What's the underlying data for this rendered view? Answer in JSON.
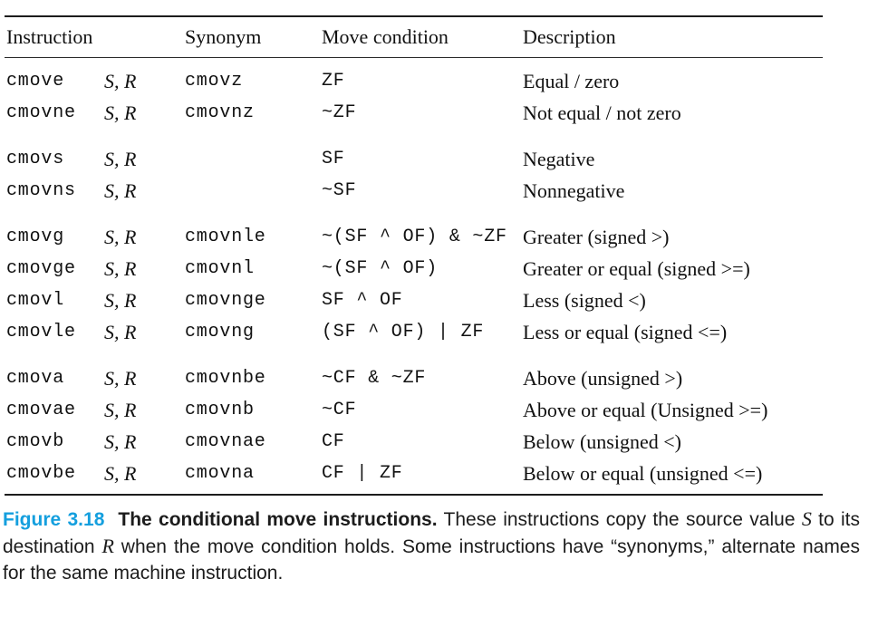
{
  "colors": {
    "figure_label": "#149FDE",
    "text": "#111111"
  },
  "table": {
    "headers": [
      "Instruction",
      "Synonym",
      "Move condition",
      "Description"
    ],
    "groups": [
      {
        "rows": [
          {
            "instruction": "cmove",
            "operands": "S, R",
            "synonym": "cmovz",
            "condition": "ZF",
            "description": "Equal / zero"
          },
          {
            "instruction": "cmovne",
            "operands": "S, R",
            "synonym": "cmovnz",
            "condition": "~ZF",
            "description": "Not equal / not zero"
          }
        ]
      },
      {
        "rows": [
          {
            "instruction": "cmovs",
            "operands": "S, R",
            "synonym": "",
            "condition": "SF",
            "description": "Negative"
          },
          {
            "instruction": "cmovns",
            "operands": "S, R",
            "synonym": "",
            "condition": "~SF",
            "description": "Nonnegative"
          }
        ]
      },
      {
        "rows": [
          {
            "instruction": "cmovg",
            "operands": "S, R",
            "synonym": "cmovnle",
            "condition": "~(SF ^ OF) & ~ZF",
            "description": "Greater (signed >)"
          },
          {
            "instruction": "cmovge",
            "operands": "S, R",
            "synonym": "cmovnl",
            "condition": "~(SF ^ OF)",
            "description": "Greater or equal (signed >=)"
          },
          {
            "instruction": "cmovl",
            "operands": "S, R",
            "synonym": "cmovnge",
            "condition": "SF ^ OF",
            "description": "Less (signed <)"
          },
          {
            "instruction": "cmovle",
            "operands": "S, R",
            "synonym": "cmovng",
            "condition": "(SF ^ OF) | ZF",
            "description": "Less or equal (signed <=)"
          }
        ]
      },
      {
        "rows": [
          {
            "instruction": "cmova",
            "operands": "S, R",
            "synonym": "cmovnbe",
            "condition": "~CF & ~ZF",
            "description": "Above (unsigned >)"
          },
          {
            "instruction": "cmovae",
            "operands": "S, R",
            "synonym": "cmovnb",
            "condition": "~CF",
            "description": "Above or equal (Unsigned >=)"
          },
          {
            "instruction": "cmovb",
            "operands": "S, R",
            "synonym": "cmovnae",
            "condition": "CF",
            "description": "Below (unsigned <)"
          },
          {
            "instruction": "cmovbe",
            "operands": "S, R",
            "synonym": "cmovna",
            "condition": "CF | ZF",
            "description": "Below or equal (unsigned <=)"
          }
        ]
      }
    ]
  },
  "figure": {
    "label": "Figure 3.18",
    "title": "The conditional move instructions.",
    "caption": {
      "seg1": " These instructions copy the source value ",
      "varS": "S",
      "seg2": " to its destination ",
      "varR": "R",
      "seg3": " when the move condition holds. Some instructions have “synonyms,” alternate names for the same machine instruction."
    }
  }
}
